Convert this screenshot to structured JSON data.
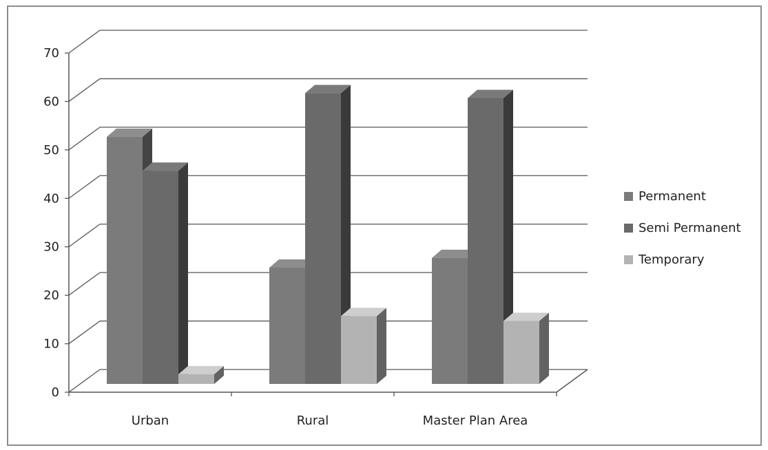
{
  "chart_data": {
    "type": "bar",
    "title": "",
    "xlabel": "",
    "ylabel": "",
    "categories": [
      "Urban",
      "Rural",
      "Master Plan Area"
    ],
    "series": [
      {
        "name": "Permanent",
        "values": [
          51,
          24,
          26
        ],
        "color": "#7b7b7b"
      },
      {
        "name": "Semi Permanent",
        "values": [
          44,
          60,
          59
        ],
        "color": "#6a6a6a"
      },
      {
        "name": "Temporary",
        "values": [
          2,
          14,
          13
        ],
        "color": "#b3b3b3"
      }
    ],
    "yticks": [
      "0",
      "10",
      "20",
      "30",
      "40",
      "50",
      "60",
      "70"
    ],
    "ylim": [
      0,
      70
    ],
    "grid": true,
    "legend": "right",
    "style": "3d-clustered-column"
  }
}
